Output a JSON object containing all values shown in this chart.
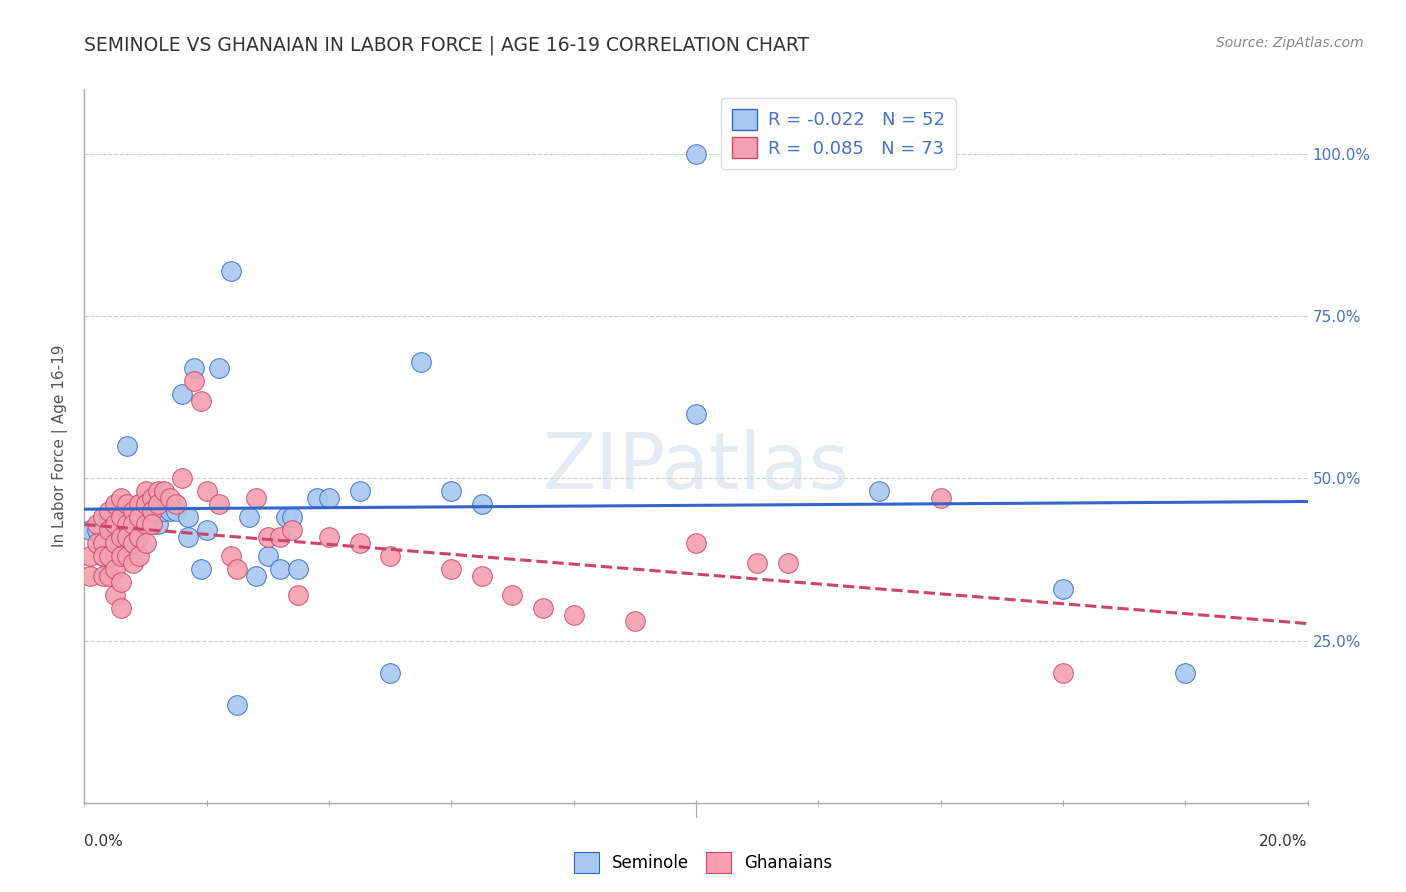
{
  "title": "SEMINOLE VS GHANAIAN IN LABOR FORCE | AGE 16-19 CORRELATION CHART",
  "source": "Source: ZipAtlas.com",
  "ylabel": "In Labor Force | Age 16-19",
  "xlim": [
    0.0,
    0.2
  ],
  "ylim": [
    0.0,
    1.1
  ],
  "ytick_labels": [
    "25.0%",
    "50.0%",
    "75.0%",
    "100.0%"
  ],
  "ytick_positions": [
    0.25,
    0.5,
    0.75,
    1.0
  ],
  "watermark": "ZIPatlas",
  "legend": {
    "seminole_R": "-0.022",
    "seminole_N": "52",
    "ghanaian_R": "0.085",
    "ghanaian_N": "73"
  },
  "seminole_color": "#A8C8F0",
  "ghanaian_color": "#F4A0B0",
  "trend_seminole_color": "#3366CC",
  "trend_ghanaian_color": "#CC4466",
  "background_color": "#FFFFFF",
  "seminole_scatter": [
    [
      0.001,
      0.42
    ],
    [
      0.002,
      0.42
    ],
    [
      0.003,
      0.38
    ],
    [
      0.003,
      0.42
    ],
    [
      0.004,
      0.44
    ],
    [
      0.004,
      0.4
    ],
    [
      0.005,
      0.45
    ],
    [
      0.005,
      0.38
    ],
    [
      0.006,
      0.4
    ],
    [
      0.006,
      0.43
    ],
    [
      0.007,
      0.55
    ],
    [
      0.007,
      0.42
    ],
    [
      0.008,
      0.44
    ],
    [
      0.009,
      0.46
    ],
    [
      0.009,
      0.42
    ],
    [
      0.01,
      0.46
    ],
    [
      0.01,
      0.44
    ],
    [
      0.011,
      0.44
    ],
    [
      0.011,
      0.43
    ],
    [
      0.012,
      0.46
    ],
    [
      0.012,
      0.43
    ],
    [
      0.013,
      0.45
    ],
    [
      0.014,
      0.45
    ],
    [
      0.015,
      0.45
    ],
    [
      0.016,
      0.63
    ],
    [
      0.017,
      0.44
    ],
    [
      0.017,
      0.41
    ],
    [
      0.018,
      0.67
    ],
    [
      0.019,
      0.36
    ],
    [
      0.02,
      0.42
    ],
    [
      0.022,
      0.67
    ],
    [
      0.024,
      0.82
    ],
    [
      0.025,
      0.15
    ],
    [
      0.027,
      0.44
    ],
    [
      0.028,
      0.35
    ],
    [
      0.03,
      0.38
    ],
    [
      0.032,
      0.36
    ],
    [
      0.033,
      0.44
    ],
    [
      0.034,
      0.44
    ],
    [
      0.035,
      0.36
    ],
    [
      0.038,
      0.47
    ],
    [
      0.04,
      0.47
    ],
    [
      0.045,
      0.48
    ],
    [
      0.05,
      0.2
    ],
    [
      0.055,
      0.68
    ],
    [
      0.06,
      0.48
    ],
    [
      0.065,
      0.46
    ],
    [
      0.1,
      1.0
    ],
    [
      0.1,
      0.6
    ],
    [
      0.13,
      0.48
    ],
    [
      0.16,
      0.33
    ],
    [
      0.18,
      0.2
    ]
  ],
  "ghanaian_scatter": [
    [
      0.001,
      0.38
    ],
    [
      0.001,
      0.35
    ],
    [
      0.002,
      0.43
    ],
    [
      0.002,
      0.4
    ],
    [
      0.003,
      0.44
    ],
    [
      0.003,
      0.4
    ],
    [
      0.003,
      0.38
    ],
    [
      0.003,
      0.35
    ],
    [
      0.004,
      0.45
    ],
    [
      0.004,
      0.42
    ],
    [
      0.004,
      0.38
    ],
    [
      0.004,
      0.35
    ],
    [
      0.005,
      0.46
    ],
    [
      0.005,
      0.43
    ],
    [
      0.005,
      0.4
    ],
    [
      0.005,
      0.36
    ],
    [
      0.005,
      0.32
    ],
    [
      0.006,
      0.47
    ],
    [
      0.006,
      0.44
    ],
    [
      0.006,
      0.41
    ],
    [
      0.006,
      0.38
    ],
    [
      0.006,
      0.34
    ],
    [
      0.006,
      0.3
    ],
    [
      0.007,
      0.46
    ],
    [
      0.007,
      0.43
    ],
    [
      0.007,
      0.41
    ],
    [
      0.007,
      0.38
    ],
    [
      0.008,
      0.45
    ],
    [
      0.008,
      0.43
    ],
    [
      0.008,
      0.4
    ],
    [
      0.008,
      0.37
    ],
    [
      0.009,
      0.46
    ],
    [
      0.009,
      0.44
    ],
    [
      0.009,
      0.41
    ],
    [
      0.009,
      0.38
    ],
    [
      0.01,
      0.48
    ],
    [
      0.01,
      0.46
    ],
    [
      0.01,
      0.43
    ],
    [
      0.01,
      0.4
    ],
    [
      0.011,
      0.47
    ],
    [
      0.011,
      0.45
    ],
    [
      0.011,
      0.43
    ],
    [
      0.012,
      0.48
    ],
    [
      0.012,
      0.46
    ],
    [
      0.013,
      0.48
    ],
    [
      0.014,
      0.47
    ],
    [
      0.015,
      0.46
    ],
    [
      0.016,
      0.5
    ],
    [
      0.018,
      0.65
    ],
    [
      0.019,
      0.62
    ],
    [
      0.02,
      0.48
    ],
    [
      0.022,
      0.46
    ],
    [
      0.024,
      0.38
    ],
    [
      0.025,
      0.36
    ],
    [
      0.028,
      0.47
    ],
    [
      0.03,
      0.41
    ],
    [
      0.032,
      0.41
    ],
    [
      0.034,
      0.42
    ],
    [
      0.035,
      0.32
    ],
    [
      0.04,
      0.41
    ],
    [
      0.045,
      0.4
    ],
    [
      0.05,
      0.38
    ],
    [
      0.06,
      0.36
    ],
    [
      0.065,
      0.35
    ],
    [
      0.07,
      0.32
    ],
    [
      0.075,
      0.3
    ],
    [
      0.08,
      0.29
    ],
    [
      0.09,
      0.28
    ],
    [
      0.1,
      0.4
    ],
    [
      0.11,
      0.37
    ],
    [
      0.115,
      0.37
    ],
    [
      0.14,
      0.47
    ],
    [
      0.16,
      0.2
    ]
  ]
}
